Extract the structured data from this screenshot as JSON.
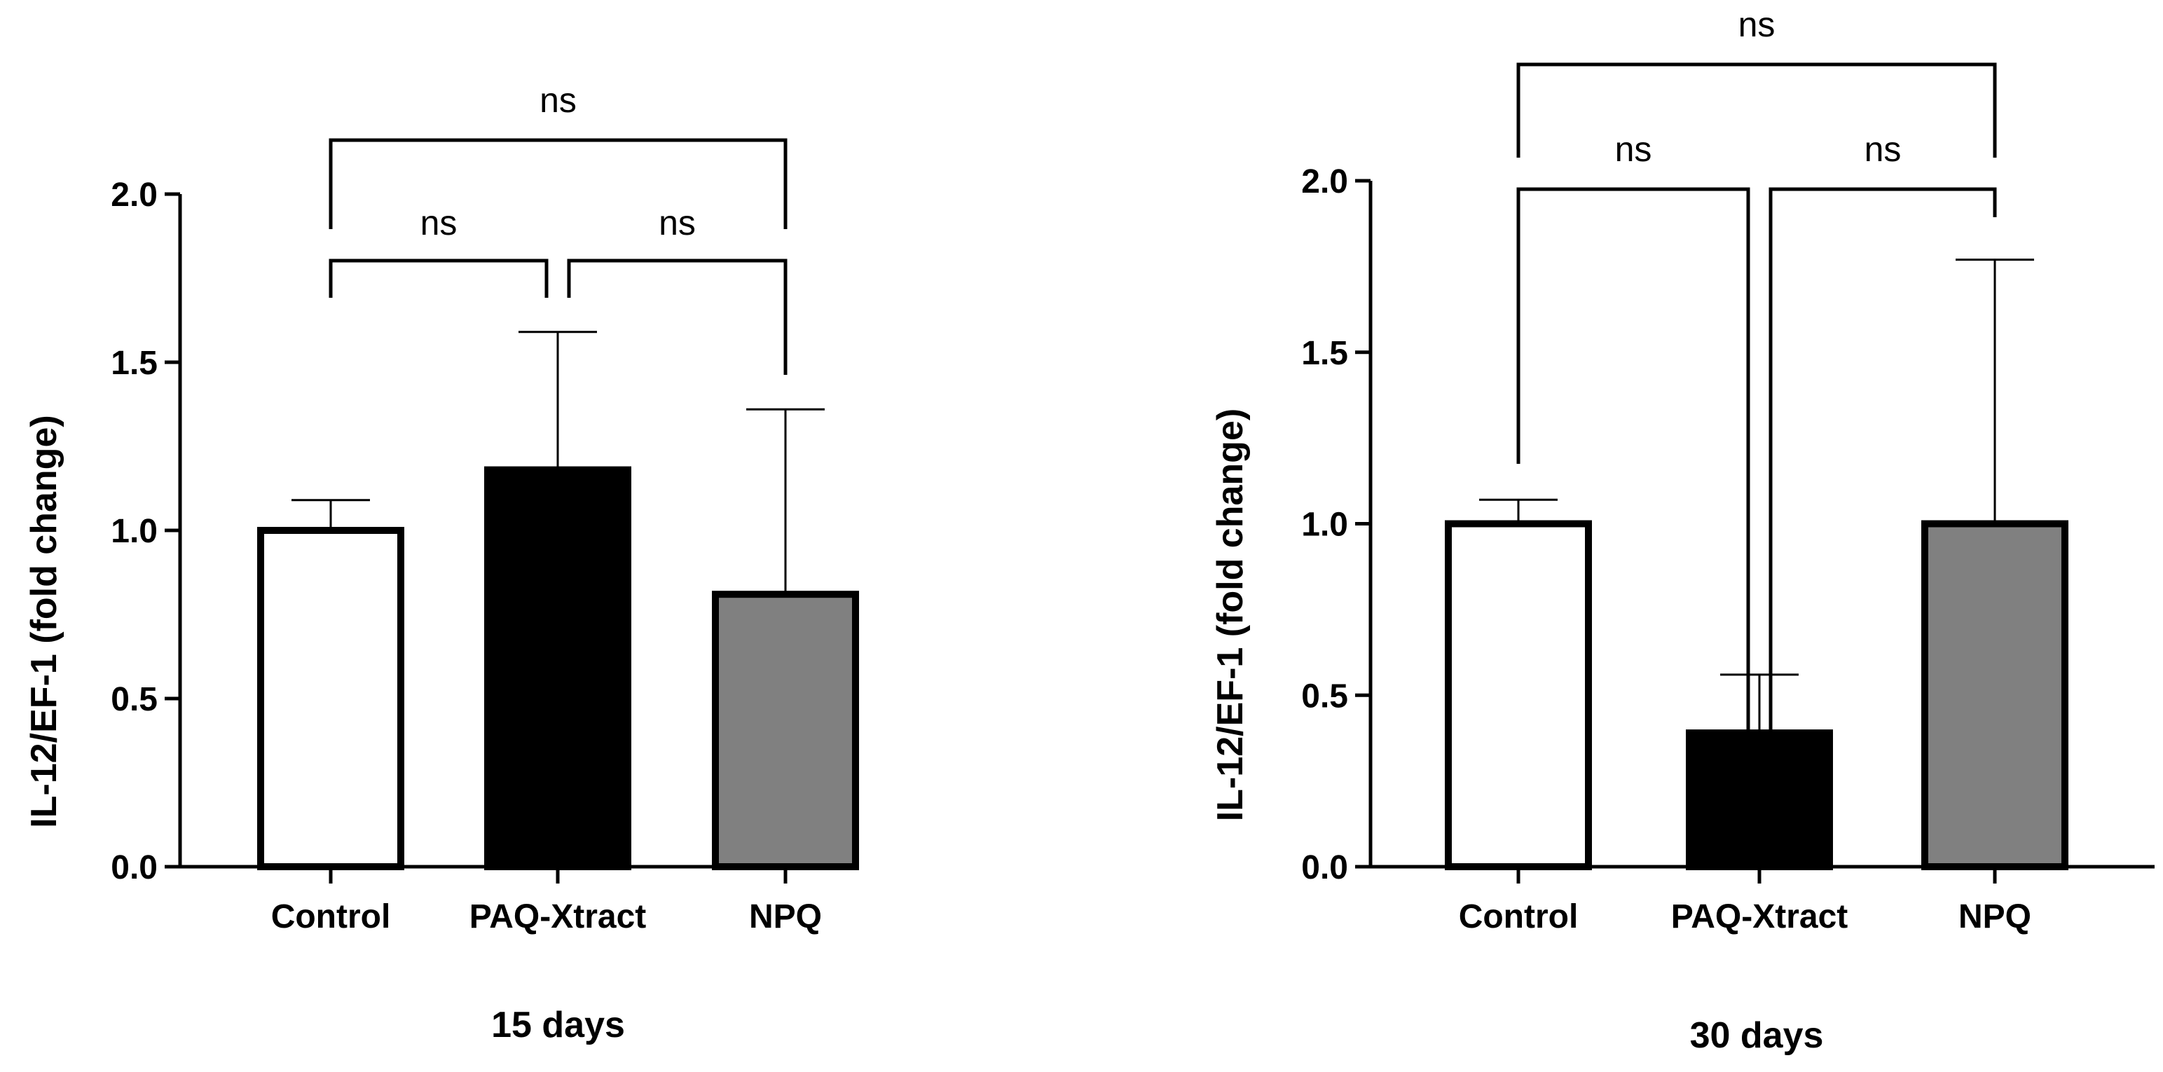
{
  "chart_data": [
    {
      "type": "bar",
      "categories": [
        "Control",
        "PAQ-Xtract",
        "NPQ"
      ],
      "values": [
        1.0,
        1.18,
        0.81
      ],
      "error_upper": [
        1.09,
        1.59,
        1.36
      ],
      "bar_fills": [
        "#ffffff",
        "#000000",
        "#808080"
      ],
      "xlabel": "15 days",
      "ylabel": "IL-12/EF-1 (fold change)",
      "ylim": [
        0,
        2.0
      ],
      "yticks": [
        "0.0",
        "0.5",
        "1.0",
        "1.5",
        "2.0"
      ],
      "significance": [
        {
          "from": "Control",
          "to": "PAQ-Xtract",
          "label": "ns"
        },
        {
          "from": "PAQ-Xtract",
          "to": "NPQ",
          "label": "ns"
        },
        {
          "from": "Control",
          "to": "NPQ",
          "label": "ns"
        }
      ]
    },
    {
      "type": "bar",
      "categories": [
        "Control",
        "PAQ-Xtract",
        "NPQ"
      ],
      "values": [
        1.0,
        0.39,
        1.0
      ],
      "error_upper": [
        1.07,
        0.56,
        1.77
      ],
      "bar_fills": [
        "#ffffff",
        "#000000",
        "#808080"
      ],
      "xlabel": "30 days",
      "ylabel": "IL-12/EF-1 (fold change)",
      "ylim": [
        0,
        2.0
      ],
      "yticks": [
        "0.0",
        "0.5",
        "1.0",
        "1.5",
        "2.0"
      ],
      "significance": [
        {
          "from": "Control",
          "to": "PAQ-Xtract",
          "label": "ns"
        },
        {
          "from": "PAQ-Xtract",
          "to": "NPQ",
          "label": "ns"
        },
        {
          "from": "Control",
          "to": "NPQ",
          "label": "ns"
        }
      ]
    }
  ]
}
